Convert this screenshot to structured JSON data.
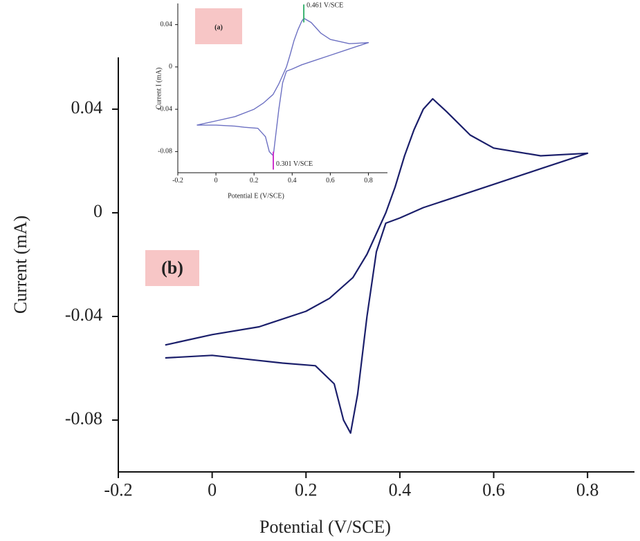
{
  "chart_data": [
    {
      "type": "line",
      "panel_label": "(b)",
      "x_label": "Potential (V/SCE)",
      "y_label": "Current (mA)",
      "xlim": [
        -0.2,
        0.9
      ],
      "ylim": [
        -0.1,
        0.06
      ],
      "xticks": [
        -0.2,
        0,
        0.2,
        0.4,
        0.6,
        0.8
      ],
      "yticks": [
        -0.08,
        -0.04,
        0,
        0.04
      ],
      "series": [
        {
          "color": "#1b1f6b",
          "x": [
            -0.1,
            0,
            0.1,
            0.2,
            0.25,
            0.3,
            0.33,
            0.35,
            0.37,
            0.39,
            0.41,
            0.43,
            0.45,
            0.47,
            0.5,
            0.55,
            0.6,
            0.7,
            0.8,
            0.7,
            0.6,
            0.5,
            0.45,
            0.4,
            0.37,
            0.35,
            0.33,
            0.31,
            0.295,
            0.28,
            0.26,
            0.22,
            0.15,
            0.1,
            0,
            -0.1
          ],
          "values": [
            -0.051,
            -0.047,
            -0.044,
            -0.038,
            -0.033,
            -0.025,
            -0.016,
            -0.008,
            0.0,
            0.01,
            0.022,
            0.032,
            0.04,
            0.044,
            0.039,
            0.03,
            0.025,
            0.022,
            0.023,
            0.017,
            0.011,
            0.005,
            0.002,
            -0.002,
            -0.004,
            -0.015,
            -0.04,
            -0.07,
            -0.085,
            -0.08,
            -0.066,
            -0.059,
            -0.058,
            -0.057,
            -0.055,
            -0.056
          ]
        }
      ]
    },
    {
      "type": "line",
      "panel_label": "(a)",
      "x_label": "Potential E (V/SCE)",
      "y_label": "Current I (mA)",
      "xlim": [
        -0.2,
        0.9
      ],
      "ylim": [
        -0.1,
        0.06
      ],
      "xticks": [
        -0.2,
        0,
        0.2,
        0.4,
        0.6,
        0.8
      ],
      "yticks": [
        -0.08,
        -0.04,
        0,
        0.04
      ],
      "series": [
        {
          "color": "#6c70c2",
          "x": [
            -0.1,
            0,
            0.1,
            0.2,
            0.25,
            0.3,
            0.33,
            0.35,
            0.37,
            0.39,
            0.41,
            0.43,
            0.45,
            0.461,
            0.5,
            0.55,
            0.6,
            0.7,
            0.8,
            0.7,
            0.6,
            0.5,
            0.45,
            0.4,
            0.37,
            0.35,
            0.33,
            0.31,
            0.301,
            0.28,
            0.26,
            0.22,
            0.15,
            0.1,
            0,
            -0.1
          ],
          "values": [
            -0.055,
            -0.051,
            -0.047,
            -0.04,
            -0.034,
            -0.026,
            -0.016,
            -0.008,
            0.0,
            0.012,
            0.025,
            0.035,
            0.043,
            0.046,
            0.042,
            0.032,
            0.026,
            0.022,
            0.023,
            0.017,
            0.011,
            0.005,
            0.002,
            -0.002,
            -0.004,
            -0.015,
            -0.04,
            -0.07,
            -0.084,
            -0.08,
            -0.066,
            -0.058,
            -0.057,
            -0.056,
            -0.055,
            -0.055
          ]
        }
      ],
      "annotations": [
        {
          "text": "0.461 V/SCE",
          "x": 0.461,
          "y": 0.046,
          "color": "#3cb371",
          "direction": "up"
        },
        {
          "text": "0.301 V/SCE",
          "x": 0.301,
          "y": -0.084,
          "color": "#cc33cc",
          "direction": "down"
        }
      ]
    }
  ]
}
